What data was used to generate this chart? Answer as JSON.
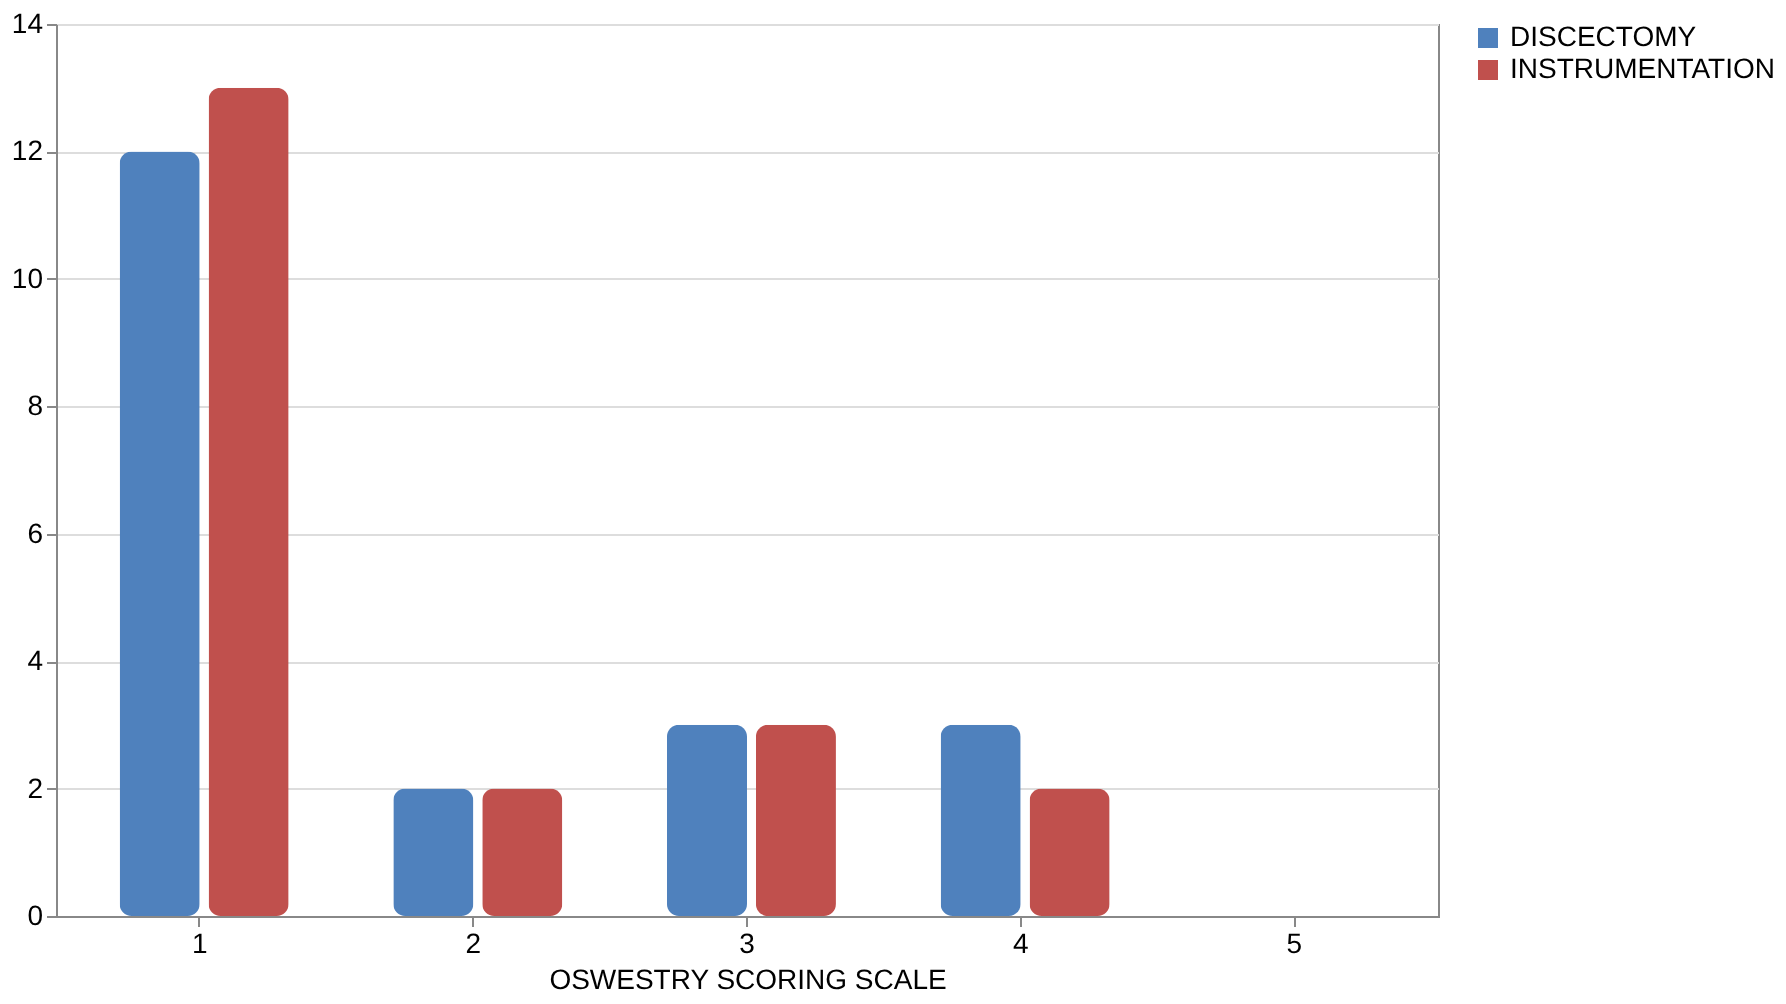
{
  "chart_data": {
    "type": "bar",
    "xlabel": "OSWESTRY SCORING SCALE",
    "categories": [
      "1",
      "2",
      "3",
      "4",
      "5"
    ],
    "series": [
      {
        "name": "DISCECTOMY",
        "color": "#4f81bd",
        "values": [
          12,
          2,
          3,
          3,
          0
        ]
      },
      {
        "name": "INSTRUMENTATION",
        "color": "#c0504d",
        "values": [
          13,
          2,
          3,
          2,
          0
        ]
      }
    ],
    "ylim": [
      0,
      14
    ],
    "yticks": [
      0,
      2,
      4,
      6,
      8,
      10,
      12,
      14
    ],
    "grid": "y",
    "legend": "right"
  }
}
